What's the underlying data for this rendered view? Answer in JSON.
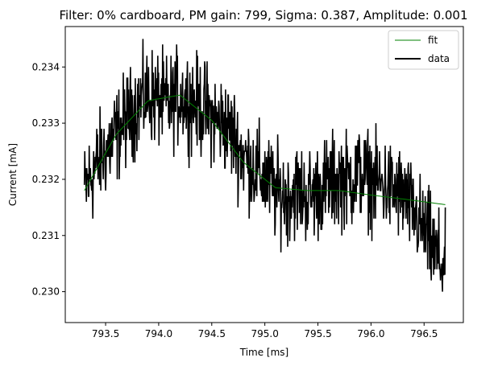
{
  "chart_data": {
    "type": "line",
    "title": "Filter: 0% cardboard, PM gain: 799, Sigma: 0.387, Amplitude: 0.001",
    "xlabel": "Time [ms]",
    "ylabel": "Current [mA]",
    "xlim": [
      793.12,
      796.87
    ],
    "ylim": [
      0.22945,
      0.23472
    ],
    "x_ticks": [
      793.5,
      794.0,
      794.5,
      795.0,
      795.5,
      796.0,
      796.5
    ],
    "x_tick_labels": [
      "793.5",
      "794.0",
      "794.5",
      "795.0",
      "795.5",
      "796.0",
      "796.5"
    ],
    "y_ticks": [
      0.23,
      0.231,
      0.232,
      0.233,
      0.234
    ],
    "y_tick_labels": [
      "0.230",
      "0.231",
      "0.232",
      "0.233",
      "0.234"
    ],
    "legend": {
      "placement": "top-right",
      "entries": [
        "fit",
        "data"
      ]
    },
    "grid": false,
    "series": [
      {
        "name": "fit",
        "color": "#008000",
        "line_width": "thin",
        "x": [
          793.3,
          793.6,
          793.9,
          794.2,
          794.5,
          794.8,
          795.1,
          795.4,
          795.7,
          796.0,
          796.3,
          796.7
        ],
        "y": [
          0.2318,
          0.2328,
          0.2334,
          0.2335,
          0.23305,
          0.2323,
          0.23185,
          0.2318,
          0.2318,
          0.23172,
          0.23165,
          0.23155
        ]
      },
      {
        "name": "data",
        "color": "#000000",
        "line_width": "thick",
        "x": [
          793.3,
          793.4,
          793.5,
          793.6,
          793.7,
          793.8,
          793.9,
          794.0,
          794.1,
          794.2,
          794.3,
          794.4,
          794.5,
          794.6,
          794.7,
          794.8,
          794.9,
          795.0,
          795.1,
          795.2,
          795.3,
          795.4,
          795.5,
          795.6,
          795.7,
          795.8,
          795.9,
          796.0,
          796.1,
          796.2,
          796.3,
          796.4,
          796.5,
          796.6,
          796.7
        ],
        "y": [
          0.2318,
          0.2322,
          0.2325,
          0.2328,
          0.2331,
          0.2333,
          0.2335,
          0.2334,
          0.2333,
          0.2335,
          0.2334,
          0.2333,
          0.2331,
          0.233,
          0.2328,
          0.2324,
          0.2322,
          0.232,
          0.2318,
          0.2317,
          0.2318,
          0.2317,
          0.2318,
          0.2319,
          0.232,
          0.232,
          0.2321,
          0.232,
          0.2319,
          0.2318,
          0.2317,
          0.2314,
          0.2311,
          0.2307,
          0.2304
        ],
        "noise_band": 0.0006
      }
    ]
  }
}
